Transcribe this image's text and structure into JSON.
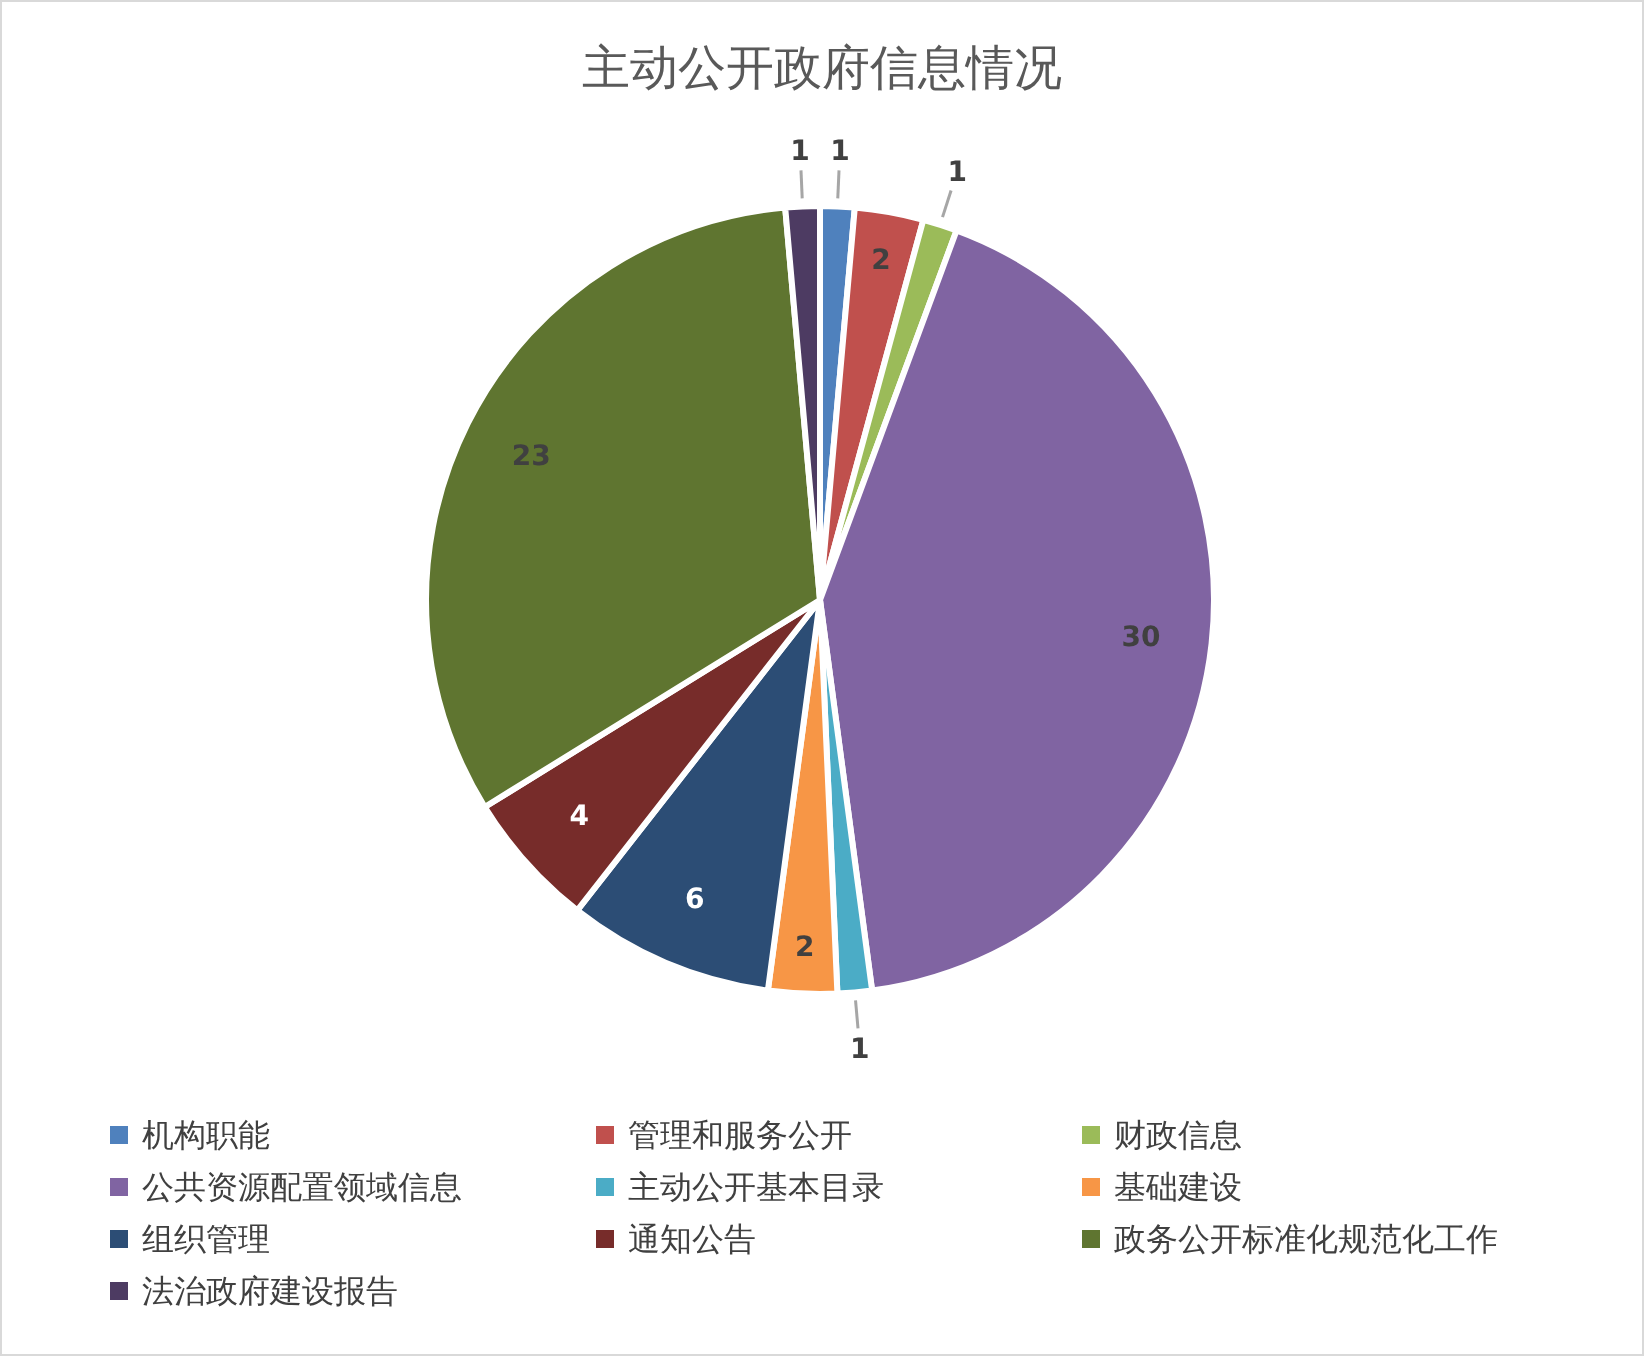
{
  "chart_data": {
    "type": "pie",
    "title": "主动公开政府信息情况",
    "categories": [
      "机构职能",
      "管理和服务公开",
      "财政信息",
      "公共资源配置领域信息",
      "主动公开基本目录",
      "基础建设",
      "组织管理",
      "通知公告",
      "政务公开标准化规范化工作",
      "法治政府建设报告"
    ],
    "values": [
      1,
      2,
      1,
      30,
      1,
      2,
      6,
      4,
      23,
      1
    ],
    "colors": [
      "#4f81bd",
      "#c0504d",
      "#9bbb59",
      "#8064a2",
      "#4bacc6",
      "#f79646",
      "#2c4d75",
      "#772c2a",
      "#5f7530",
      "#4d3b62"
    ],
    "data_labels": true,
    "legend": "bottom"
  }
}
